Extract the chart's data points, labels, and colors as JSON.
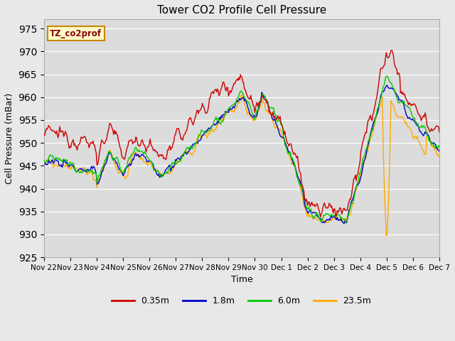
{
  "title": "Tower CO2 Profile Cell Pressure",
  "xlabel": "Time",
  "ylabel": "Cell Pressure (mBar)",
  "ylim": [
    925,
    977
  ],
  "yticks": [
    925,
    930,
    935,
    940,
    945,
    950,
    955,
    960,
    965,
    970,
    975
  ],
  "bg_color": "#e8e8e8",
  "plot_bg_color": "#dcdcdc",
  "series_colors": {
    "0.35m": "#cc0000",
    "1.8m": "#0000cc",
    "6.0m": "#00cc00",
    "23.5m": "#ffaa00"
  },
  "label_box": {
    "text": "TZ_co2prof",
    "bg": "#ffffcc",
    "border": "#cc8800"
  },
  "x_tick_labels": [
    "Nov 22",
    "Nov 23",
    "Nov 24",
    "Nov 25",
    "Nov 26",
    "Nov 27",
    "Nov 28",
    "Nov 29",
    "Nov 30",
    "Dec 1",
    "Dec 2",
    "Dec 3",
    "Dec 4",
    "Dec 5",
    "Dec 6",
    "Dec 7"
  ],
  "n_points": 500
}
